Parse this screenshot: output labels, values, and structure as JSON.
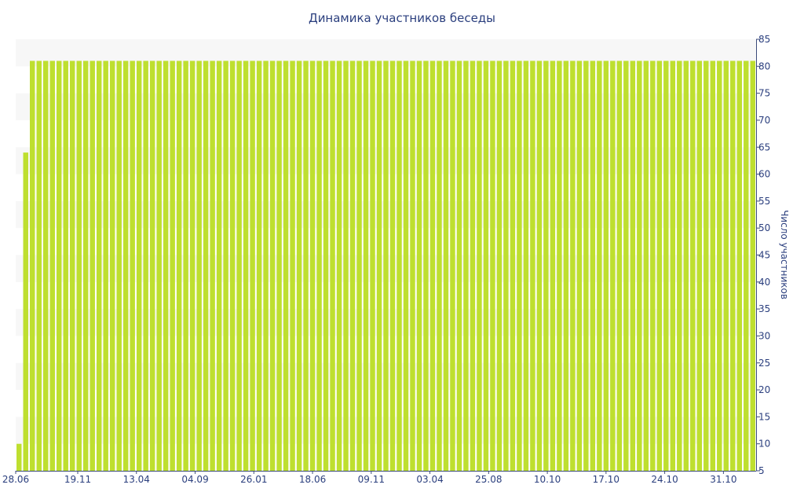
{
  "chart_data": {
    "type": "bar",
    "title": "Динамика участников беседы",
    "xlabel": "",
    "ylabel": "Число участников",
    "ylim": [
      5,
      85
    ],
    "y_axis_side": "right",
    "yticks": [
      5,
      10,
      15,
      20,
      25,
      30,
      35,
      40,
      45,
      50,
      55,
      60,
      65,
      70,
      75,
      80,
      85
    ],
    "xtick_labels": [
      "28.06",
      "19.11",
      "13.04",
      "04.09",
      "26.01",
      "18.06",
      "09.11",
      "03.04",
      "25.08",
      "10.10",
      "17.10",
      "24.10",
      "31.10"
    ],
    "bar_color": "#bedf2f",
    "grid": "alternating horizontal bands",
    "series": [
      {
        "values": [
          10,
          64,
          81,
          81,
          81,
          81,
          81,
          81,
          81,
          81,
          81,
          81,
          81,
          81,
          81,
          81,
          81,
          81,
          81,
          81,
          81,
          81,
          81,
          81,
          81,
          81,
          81,
          81,
          81,
          81,
          81,
          81,
          81,
          81,
          81,
          81,
          81,
          81,
          81,
          81,
          81,
          81,
          81,
          81,
          81,
          81,
          81,
          81,
          81,
          81,
          81,
          81,
          81,
          81,
          81,
          81,
          81,
          81,
          81,
          81,
          81,
          81,
          81,
          81,
          81,
          81,
          81,
          81,
          81,
          81,
          81,
          81,
          81,
          81,
          81,
          81,
          81,
          81,
          81,
          81,
          81,
          81,
          81,
          81,
          81,
          81,
          81,
          81,
          81,
          81,
          81,
          81,
          81,
          81,
          81,
          81,
          81,
          81,
          81,
          81,
          81,
          81,
          81,
          81,
          81,
          81,
          81,
          81,
          81,
          81,
          81
        ]
      }
    ]
  }
}
